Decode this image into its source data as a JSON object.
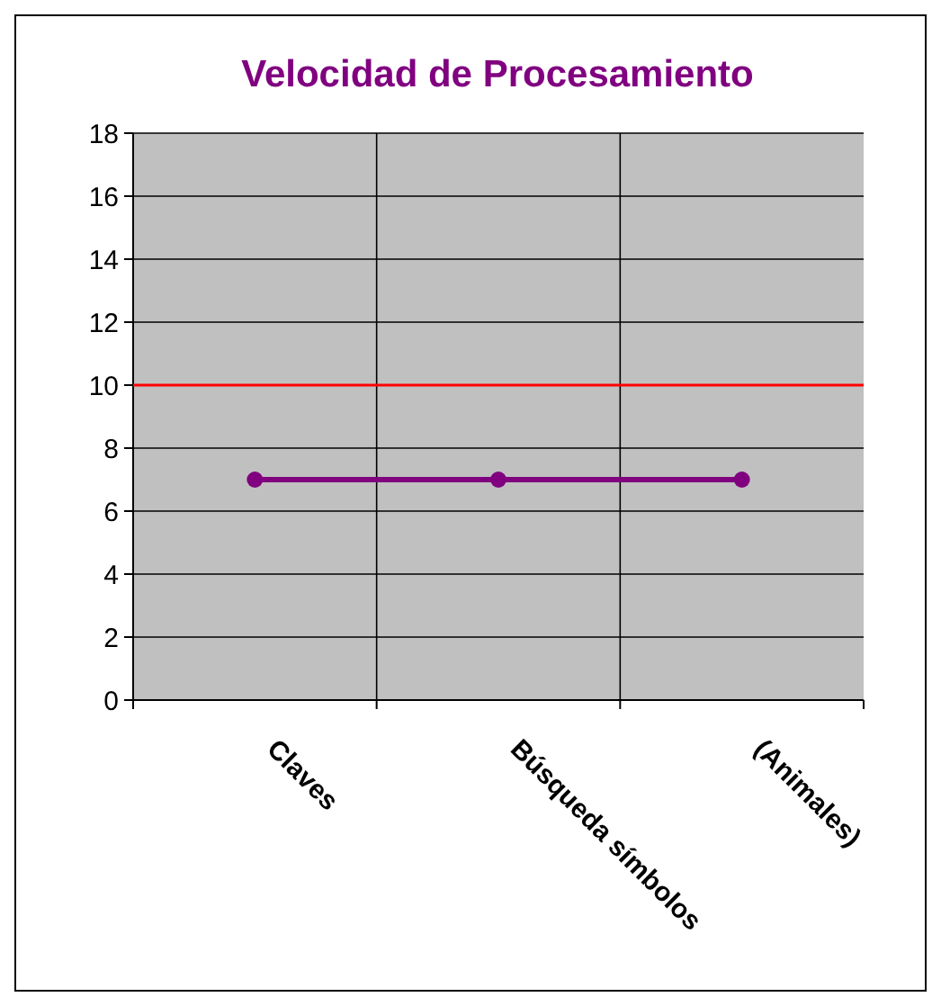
{
  "chart_data": {
    "type": "line",
    "title": "Velocidad de Procesamiento",
    "categories": [
      "Claves",
      "Búsqueda símbolos",
      "(Animales)"
    ],
    "series": [
      {
        "color": "#800080",
        "values": [
          7,
          7,
          7
        ]
      }
    ],
    "ylim": [
      0,
      18
    ],
    "yticks": [
      0,
      2,
      4,
      6,
      8,
      10,
      12,
      14,
      16,
      18
    ],
    "grid": true,
    "marker": "circle",
    "ref_lines": [
      {
        "axis": "y",
        "value": 10,
        "color": "#ff0000"
      }
    ]
  }
}
